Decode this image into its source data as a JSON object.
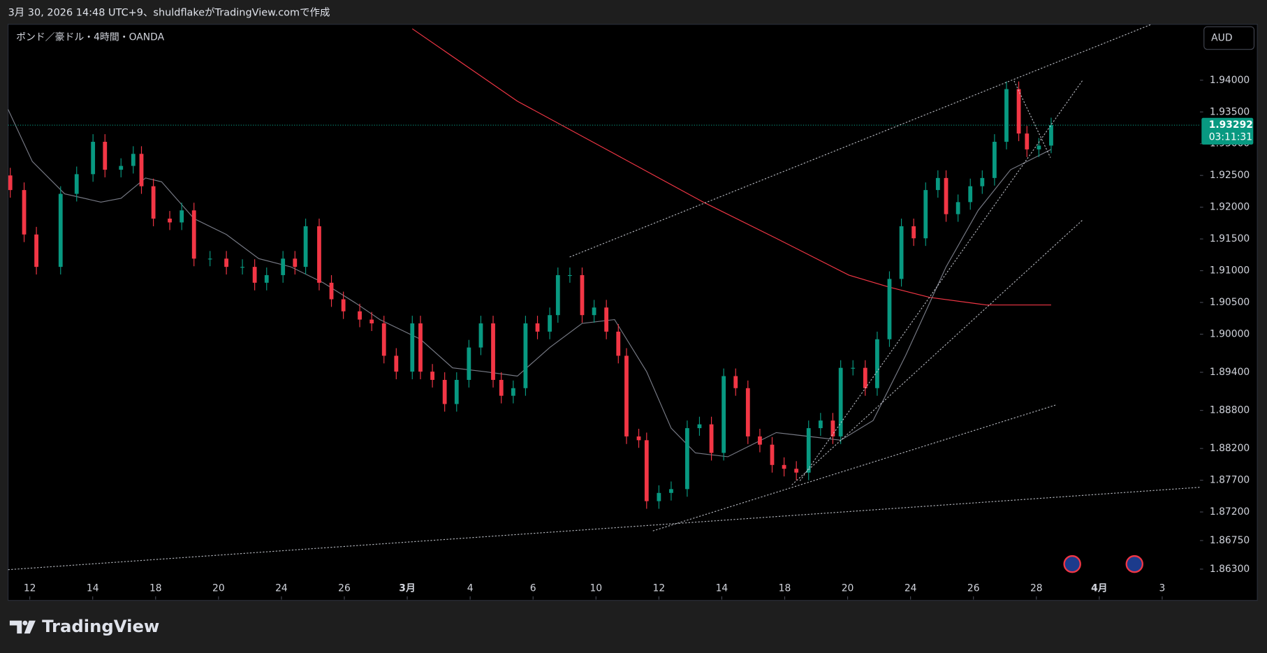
{
  "header": {
    "text": "3月 30, 2026 14:48 UTC+9、shuldflakeがTradingView.comで作成"
  },
  "footer": {
    "brand": "TradingView"
  },
  "chart_data": {
    "type": "candlestick",
    "title": "ポンド／豪ドル・4時間・OANDA",
    "currency_button": "AUD",
    "up_color": "#089981",
    "down_color": "#f23645",
    "x": [
      -0.62,
      -0.18,
      0.21,
      0.98,
      1.49,
      2.01,
      2.39,
      2.9,
      3.29,
      3.55,
      3.93,
      4.45,
      4.83,
      5.22,
      5.73,
      6.25,
      6.76,
      7.15,
      7.53,
      8.05,
      8.43,
      8.77,
      9.2,
      9.59,
      9.97,
      10.49,
      10.87,
      11.26,
      11.65,
      12.16,
      12.42,
      12.8,
      13.19,
      13.57,
      13.96,
      14.34,
      14.73,
      14.99,
      15.37,
      15.76,
      16.14,
      16.53,
      16.79,
      17.17,
      17.56,
      17.94,
      18.33,
      18.71,
      18.97,
      19.36,
      19.61,
      20.0,
      20.39,
      20.9,
      21.29,
      21.67,
      22.06,
      22.44,
      22.83,
      23.21,
      23.6,
      23.98,
      24.37,
      24.76,
      25.14,
      25.53,
      25.78,
      26.17,
      26.56,
      26.94,
      27.33,
      27.71,
      28.1,
      28.48,
      28.87,
      29.13,
      29.51,
      29.9,
      30.28,
      30.67,
      31.05,
      31.44,
      31.7,
      32.08,
      32.47
    ],
    "open": [
      1.925,
      1.9227,
      1.9157,
      1.9106,
      1.9221,
      1.9252,
      1.9303,
      1.9259,
      1.9265,
      1.9284,
      1.9233,
      1.9182,
      1.9176,
      1.9195,
      1.9119,
      1.9119,
      1.9106,
      1.9106,
      1.9081,
      1.9093,
      1.9119,
      1.9106,
      1.917,
      1.9081,
      1.9055,
      1.9036,
      1.9023,
      1.9017,
      1.8966,
      1.8941,
      1.9017,
      1.8941,
      1.8928,
      1.889,
      1.8928,
      1.8979,
      1.9017,
      1.8928,
      1.8903,
      1.8915,
      1.9017,
      1.9004,
      1.903,
      1.9093,
      1.9093,
      1.903,
      1.9042,
      1.9004,
      1.8966,
      1.8839,
      1.8833,
      1.8737,
      1.875,
      1.8756,
      1.8852,
      1.8858,
      1.8813,
      1.8934,
      1.8915,
      1.8839,
      1.8826,
      1.8794,
      1.8788,
      1.8782,
      1.8852,
      1.8864,
      1.8839,
      1.8947,
      1.8947,
      1.8915,
      1.8992,
      1.9087,
      1.917,
      1.9151,
      1.9227,
      1.9246,
      1.9189,
      1.9208,
      1.9233,
      1.9246,
      1.9303,
      1.9386,
      1.9316,
      1.9291,
      1.9297
    ],
    "high": [
      1.9262,
      1.9239,
      1.9169,
      1.9233,
      1.9264,
      1.9315,
      1.9315,
      1.9277,
      1.9296,
      1.9296,
      1.9245,
      1.9194,
      1.9207,
      1.9207,
      1.9131,
      1.9131,
      1.9118,
      1.9118,
      1.9105,
      1.9131,
      1.9131,
      1.9182,
      1.9182,
      1.9093,
      1.9067,
      1.9048,
      1.9035,
      1.9029,
      1.8978,
      1.9029,
      1.9029,
      1.8953,
      1.894,
      1.894,
      1.8991,
      1.9029,
      1.9029,
      1.894,
      1.8927,
      1.9029,
      1.9029,
      1.9042,
      1.9105,
      1.9105,
      1.9105,
      1.9054,
      1.9054,
      1.9016,
      1.8978,
      1.8851,
      1.8845,
      1.8762,
      1.8768,
      1.8864,
      1.887,
      1.887,
      1.8946,
      1.8946,
      1.8927,
      1.8851,
      1.8838,
      1.8806,
      1.88,
      1.8864,
      1.8876,
      1.8876,
      1.8959,
      1.8959,
      1.8959,
      1.9004,
      1.9099,
      1.9182,
      1.9182,
      1.9239,
      1.9258,
      1.9258,
      1.922,
      1.9245,
      1.9258,
      1.9315,
      1.9398,
      1.9398,
      1.9328,
      1.9309,
      1.9341
    ],
    "low": [
      1.9215,
      1.9145,
      1.9094,
      1.9094,
      1.9209,
      1.924,
      1.9247,
      1.9247,
      1.9253,
      1.9221,
      1.917,
      1.9164,
      1.9164,
      1.9107,
      1.9107,
      1.9094,
      1.9094,
      1.9069,
      1.9069,
      1.9081,
      1.9094,
      1.9094,
      1.9069,
      1.9043,
      1.9024,
      1.9011,
      1.9005,
      1.8954,
      1.8929,
      1.8929,
      1.8929,
      1.8916,
      1.8878,
      1.8878,
      1.8916,
      1.8967,
      1.8916,
      1.8891,
      1.8891,
      1.8903,
      1.8992,
      1.8992,
      1.9018,
      1.9081,
      1.9018,
      1.9018,
      1.8992,
      1.8954,
      1.8827,
      1.8821,
      1.8725,
      1.8725,
      1.8738,
      1.8744,
      1.884,
      1.8801,
      1.8801,
      1.8903,
      1.8827,
      1.8814,
      1.8782,
      1.8776,
      1.877,
      1.877,
      1.884,
      1.8827,
      1.8827,
      1.8935,
      1.8903,
      1.8903,
      1.898,
      1.9075,
      1.9139,
      1.9139,
      1.9215,
      1.9177,
      1.9177,
      1.9196,
      1.9221,
      1.9234,
      1.9291,
      1.9304,
      1.9279,
      1.9279,
      1.9285
    ],
    "close": [
      1.9227,
      1.9157,
      1.9106,
      1.9221,
      1.9252,
      1.9303,
      1.9259,
      1.9265,
      1.9284,
      1.9233,
      1.9182,
      1.9176,
      1.9195,
      1.9119,
      1.9119,
      1.9106,
      1.9106,
      1.9081,
      1.9093,
      1.9119,
      1.9106,
      1.917,
      1.9081,
      1.9055,
      1.9036,
      1.9023,
      1.9017,
      1.8966,
      1.8941,
      1.9017,
      1.8941,
      1.8928,
      1.889,
      1.8928,
      1.8979,
      1.9017,
      1.8928,
      1.8903,
      1.8915,
      1.9017,
      1.9004,
      1.903,
      1.9093,
      1.9093,
      1.903,
      1.9042,
      1.9004,
      1.8966,
      1.8839,
      1.8833,
      1.8737,
      1.875,
      1.8756,
      1.8852,
      1.8858,
      1.8813,
      1.8934,
      1.8915,
      1.8839,
      1.8826,
      1.8794,
      1.8788,
      1.8782,
      1.8852,
      1.8864,
      1.8839,
      1.8947,
      1.8947,
      1.8915,
      1.8992,
      1.9087,
      1.917,
      1.9151,
      1.9227,
      1.9246,
      1.9189,
      1.9208,
      1.9233,
      1.9246,
      1.9303,
      1.9386,
      1.9316,
      1.9291,
      1.9297,
      1.93292
    ],
    "lines": [
      {
        "color": "#f23645",
        "x": [
          12.16,
          15.5,
          18.59,
          21.41,
          23.73,
          26.04,
          27.33,
          28.61,
          30.41,
          32.47
        ],
        "values": [
          1.9481,
          1.9367,
          1.9284,
          1.9208,
          1.9151,
          1.9093,
          1.9074,
          1.9058,
          1.9046,
          1.9046
        ]
      },
      {
        "color": "#787b86",
        "x": [
          -0.69,
          0.08,
          1.11,
          2.26,
          2.9,
          3.68,
          4.19,
          5.22,
          6.25,
          7.28,
          8.3,
          9.33,
          10.36,
          11.13,
          12.42,
          13.44,
          14.47,
          15.5,
          16.53,
          17.56,
          18.59,
          19.61,
          20.39,
          21.16,
          22.19,
          23.73,
          24.76,
          25.78,
          26.81,
          27.84,
          29.13,
          30.15,
          31.18,
          32.47
        ],
        "values": [
          1.9354,
          1.9272,
          1.9221,
          1.9208,
          1.9214,
          1.9246,
          1.924,
          1.9182,
          1.9157,
          1.9119,
          1.9106,
          1.9081,
          1.9049,
          1.9023,
          1.8992,
          1.8947,
          1.8941,
          1.8934,
          1.8979,
          1.9017,
          1.9023,
          1.8941,
          1.8852,
          1.8813,
          1.8807,
          1.8845,
          1.8839,
          1.8833,
          1.8864,
          1.8966,
          1.9106,
          1.9195,
          1.9259,
          1.9291
        ]
      }
    ],
    "last_price": 1.93292,
    "countdown": "03:11:31",
    "price_line_color": "#089981",
    "xlim": [
      -0.69,
      37.2
    ],
    "ylim": [
      1.8582,
      1.9488
    ],
    "xticks": [
      {
        "value": 0,
        "label": "12"
      },
      {
        "value": 2,
        "label": "14"
      },
      {
        "value": 4,
        "label": "18"
      },
      {
        "value": 6,
        "label": "20"
      },
      {
        "value": 8,
        "label": "24"
      },
      {
        "value": 10,
        "label": "26"
      },
      {
        "value": 12,
        "label": "3月"
      },
      {
        "value": 14,
        "label": "4"
      },
      {
        "value": 16,
        "label": "6"
      },
      {
        "value": 18,
        "label": "10"
      },
      {
        "value": 20,
        "label": "12"
      },
      {
        "value": 22,
        "label": "14"
      },
      {
        "value": 24,
        "label": "18"
      },
      {
        "value": 26,
        "label": "20"
      },
      {
        "value": 28,
        "label": "24"
      },
      {
        "value": 30,
        "label": "26"
      },
      {
        "value": 32,
        "label": "28"
      },
      {
        "value": 34,
        "label": "4月"
      },
      {
        "value": 36,
        "label": "3"
      }
    ],
    "yticks": [
      {
        "value": 1.94,
        "label": "1.94000"
      },
      {
        "value": 1.935,
        "label": "1.93500"
      },
      {
        "value": 1.93,
        "label": "1.93000"
      },
      {
        "value": 1.925,
        "label": "1.92500"
      },
      {
        "value": 1.92,
        "label": "1.92000"
      },
      {
        "value": 1.915,
        "label": "1.91500"
      },
      {
        "value": 1.91,
        "label": "1.91000"
      },
      {
        "value": 1.905,
        "label": "1.90500"
      },
      {
        "value": 1.9,
        "label": "1.90000"
      },
      {
        "value": 1.894,
        "label": "1.89400"
      },
      {
        "value": 1.888,
        "label": "1.88800"
      },
      {
        "value": 1.882,
        "label": "1.88200"
      },
      {
        "value": 1.877,
        "label": "1.87700"
      },
      {
        "value": 1.872,
        "label": "1.87200"
      },
      {
        "value": 1.8675,
        "label": "1.86750"
      },
      {
        "value": 1.863,
        "label": "1.86300"
      }
    ]
  }
}
